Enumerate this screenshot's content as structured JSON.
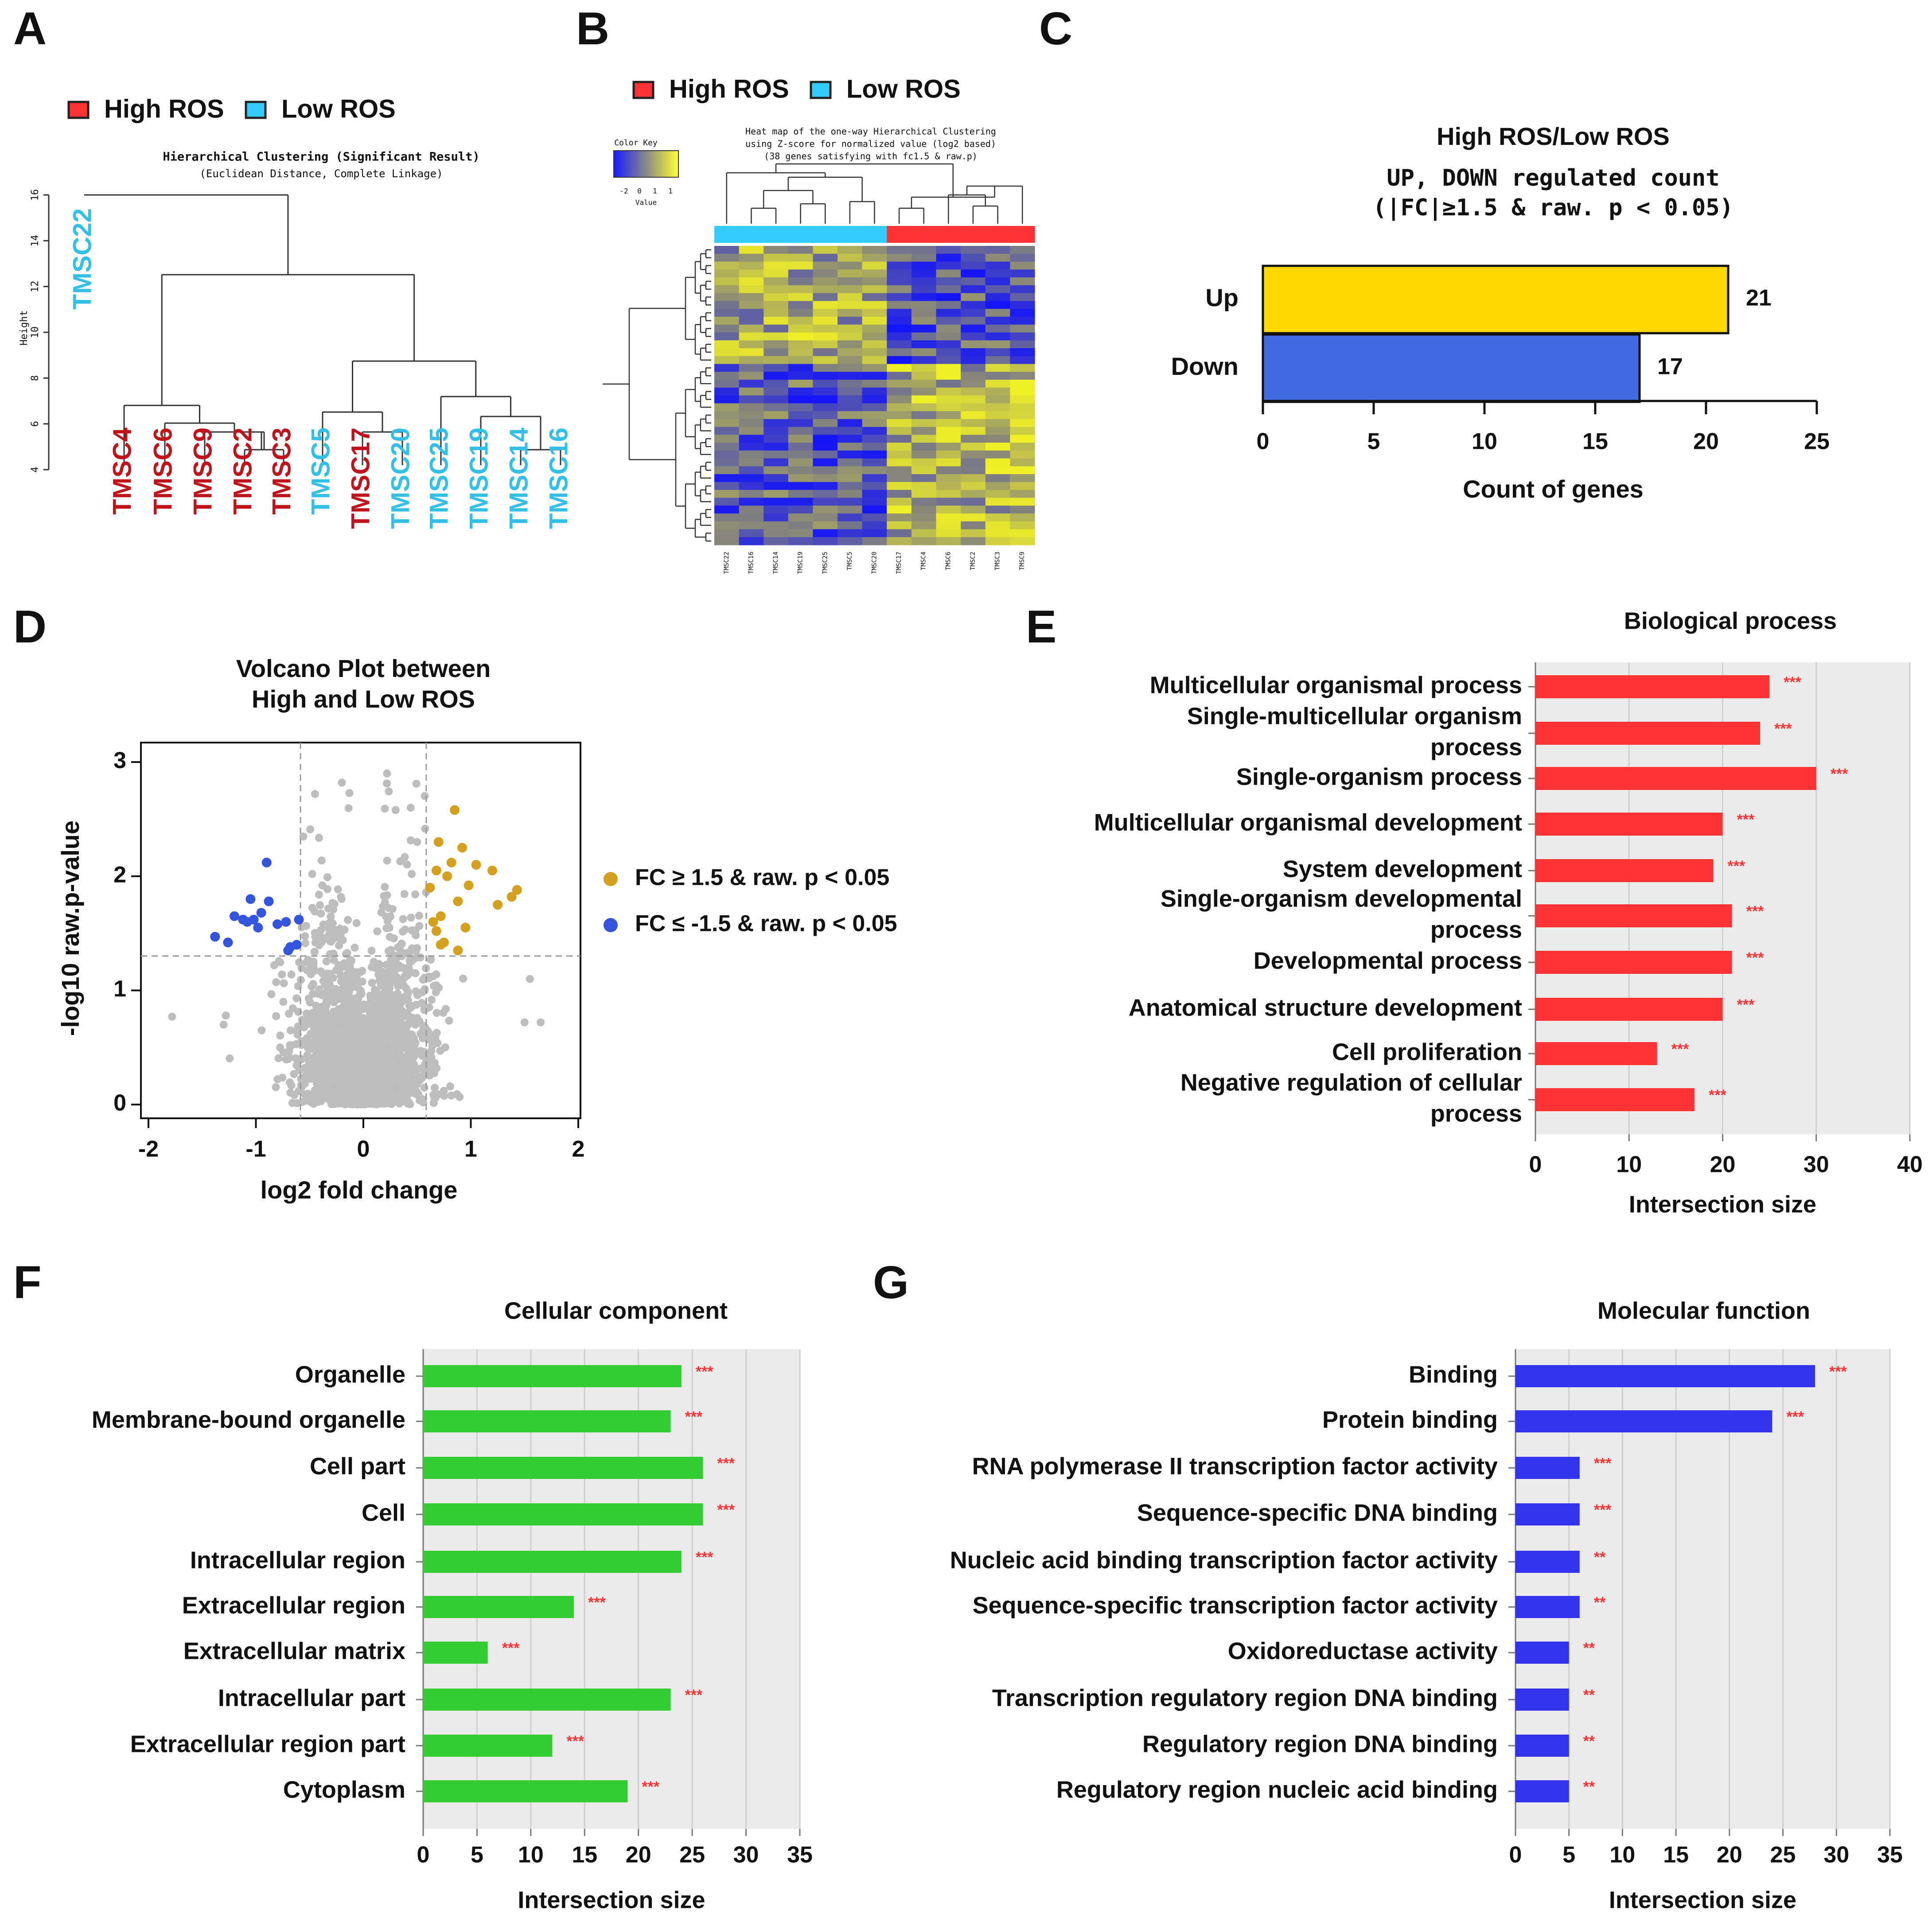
{
  "panel_letters": [
    "A",
    "B",
    "C",
    "D",
    "E",
    "F",
    "G"
  ],
  "legend": {
    "high": "High ROS",
    "low": "Low ROS",
    "high_color": "#ff3333",
    "low_color": "#33ccff"
  },
  "colors": {
    "high_label": "#c0141c",
    "low_label": "#33bfe6",
    "up": "#ffd700",
    "down": "#4169e1",
    "bp": "#ff3333",
    "cc": "#33cc33",
    "mf": "#3333ee",
    "sig": "#ff3333",
    "volcano_up": "#d4a020",
    "volcano_down": "#3355dd",
    "volcano_ns": "#bdbdbd"
  },
  "chart_data": [
    {
      "id": "A",
      "type": "dendrogram",
      "title": "Hierarchical Clustering (Significant Result)",
      "subtitle": "(Euclidean Distance, Complete Linkage)",
      "ylabel": "Height",
      "yticks": [
        4,
        6,
        8,
        10,
        12,
        14,
        16
      ],
      "ylim": [
        4,
        16
      ],
      "leaves": [
        {
          "name": "TMSC22",
          "group": "low"
        },
        {
          "name": "TMSC4",
          "group": "high"
        },
        {
          "name": "TMSC6",
          "group": "high"
        },
        {
          "name": "TMSC9",
          "group": "high"
        },
        {
          "name": "TMSC2",
          "group": "high"
        },
        {
          "name": "TMSC3",
          "group": "high"
        },
        {
          "name": "TMSC5",
          "group": "low"
        },
        {
          "name": "TMSC17",
          "group": "high"
        },
        {
          "name": "TMSC20",
          "group": "low"
        },
        {
          "name": "TMSC25",
          "group": "low"
        },
        {
          "name": "TMSC19",
          "group": "low"
        },
        {
          "name": "TMSC14",
          "group": "low"
        },
        {
          "name": "TMSC16",
          "group": "low"
        }
      ]
    },
    {
      "id": "B",
      "type": "heatmap",
      "title_lines": [
        "Heat map of the one-way Hierarchical Clustering",
        "using Z-score for normalized value (log2 based)",
        "(38 genes satisfying with fc1.5 & raw.p)"
      ],
      "color_key": {
        "title": "Color Key",
        "ticks": [
          "-2",
          "0",
          "1",
          "1"
        ],
        "label": "Value"
      },
      "columns": [
        "TMSC22",
        "TMSC16",
        "TMSC14",
        "TMSC19",
        "TMSC25",
        "TMSC5",
        "TMSC20",
        "TMSC17",
        "TMSC4",
        "TMSC6",
        "TMSC2",
        "TMSC3",
        "TMSC9"
      ],
      "column_groups": [
        "low",
        "low",
        "low",
        "low",
        "low",
        "low",
        "low",
        "high",
        "high",
        "high",
        "high",
        "high",
        "high"
      ],
      "n_genes": 38
    },
    {
      "id": "C",
      "type": "bar",
      "orientation": "horizontal",
      "title": "High ROS/Low ROS",
      "subtitle_line1": "UP, DOWN regulated count",
      "subtitle_line2": "(|FC|≥1.5 & raw. p < 0.05)",
      "categories": [
        "Up",
        "Down"
      ],
      "values": [
        21,
        17
      ],
      "xlabel": "Count of genes",
      "xlim": [
        0,
        25
      ],
      "xticks": [
        0,
        5,
        10,
        15,
        20,
        25
      ]
    },
    {
      "id": "D",
      "type": "scatter",
      "title_line1": "Volcano Plot between",
      "title_line2": "High and Low ROS",
      "xlabel": "log2 fold change",
      "ylabel": "-log10 raw.p-value",
      "xlim": [
        -2,
        2
      ],
      "ylim": [
        0,
        3
      ],
      "xticks": [
        -2,
        -1,
        0,
        1,
        2
      ],
      "yticks": [
        0,
        1,
        2,
        3
      ],
      "fc_threshold": 0.585,
      "p_threshold": 1.301,
      "legend_up": "FC ≥ 1.5 & raw. p < 0.05",
      "legend_down": "FC ≤ -1.5 & raw. p < 0.05",
      "up_points": [
        [
          0.62,
          1.9
        ],
        [
          0.7,
          2.3
        ],
        [
          0.72,
          1.65
        ],
        [
          0.78,
          2.0
        ],
        [
          0.82,
          2.12
        ],
        [
          0.85,
          2.58
        ],
        [
          0.88,
          1.78
        ],
        [
          0.92,
          2.25
        ],
        [
          0.95,
          1.55
        ],
        [
          0.98,
          1.92
        ],
        [
          1.05,
          2.1
        ],
        [
          1.2,
          2.05
        ],
        [
          1.25,
          1.75
        ],
        [
          1.38,
          1.82
        ],
        [
          1.43,
          1.88
        ],
        [
          0.65,
          1.6
        ],
        [
          0.68,
          1.52
        ],
        [
          0.72,
          1.4
        ],
        [
          0.75,
          1.42
        ],
        [
          0.88,
          1.35
        ],
        [
          0.68,
          2.05
        ]
      ],
      "down_points": [
        [
          -1.38,
          1.47
        ],
        [
          -1.26,
          1.42
        ],
        [
          -1.2,
          1.65
        ],
        [
          -1.12,
          1.62
        ],
        [
          -1.05,
          1.8
        ],
        [
          -1.02,
          1.62
        ],
        [
          -0.98,
          1.55
        ],
        [
          -0.9,
          2.12
        ],
        [
          -0.88,
          1.78
        ],
        [
          -0.8,
          1.58
        ],
        [
          -0.72,
          1.6
        ],
        [
          -0.68,
          1.38
        ],
        [
          -0.62,
          1.4
        ],
        [
          -0.6,
          1.62
        ],
        [
          -0.95,
          1.68
        ],
        [
          -1.08,
          1.6
        ],
        [
          -0.7,
          1.35
        ]
      ]
    },
    {
      "id": "E",
      "type": "bar",
      "orientation": "horizontal",
      "title": "Biological process",
      "xlabel": "Intersection size",
      "xlim": [
        0,
        40
      ],
      "xticks": [
        0,
        10,
        20,
        30,
        40
      ],
      "categories": [
        "Multicellular organismal process",
        "Single-multicellular organism process",
        "Single-organism process",
        "Multicellular organismal development",
        "System development",
        "Single-organism developmental process",
        "Developmental process",
        "Anatomical structure development",
        "Cell proliferation",
        "Negative regulation of cellular process"
      ],
      "label_lines": [
        [
          "Multicellular organismal process"
        ],
        [
          "Single-multicellular organism",
          "process"
        ],
        [
          "Single-organism process"
        ],
        [
          "Multicellular organismal development"
        ],
        [
          "System development"
        ],
        [
          "Single-organism developmental",
          "process"
        ],
        [
          "Developmental process"
        ],
        [
          "Anatomical structure development"
        ],
        [
          "Cell proliferation"
        ],
        [
          "Negative regulation of cellular",
          "process"
        ]
      ],
      "values": [
        25,
        24,
        30,
        20,
        19,
        21,
        21,
        20,
        13,
        17
      ],
      "significance": [
        "***",
        "***",
        "***",
        "***",
        "***",
        "***",
        "***",
        "***",
        "***",
        "***"
      ]
    },
    {
      "id": "F",
      "type": "bar",
      "orientation": "horizontal",
      "title": "Cellular component",
      "xlabel": "Intersection size",
      "xlim": [
        0,
        35
      ],
      "xticks": [
        0,
        5,
        10,
        15,
        20,
        25,
        30,
        35
      ],
      "categories": [
        "Organelle",
        "Membrane-bound organelle",
        "Cell part",
        "Cell",
        "Intracellular region",
        "Extracellular region",
        "Extracellular matrix",
        "Intracellular part",
        "Extracellular region part",
        "Cytoplasm"
      ],
      "values": [
        24,
        23,
        26,
        26,
        24,
        14,
        6,
        23,
        12,
        19
      ],
      "significance": [
        "***",
        "***",
        "***",
        "***",
        "***",
        "***",
        "***",
        "***",
        "***",
        "***"
      ]
    },
    {
      "id": "G",
      "type": "bar",
      "orientation": "horizontal",
      "title": "Molecular function",
      "xlabel": "Intersection size",
      "xlim": [
        0,
        35
      ],
      "xticks": [
        0,
        5,
        10,
        15,
        20,
        25,
        30,
        35
      ],
      "categories": [
        "Binding",
        "Protein binding",
        "RNA polymerase II transcription factor activity",
        "Sequence-specific DNA binding",
        "Nucleic acid binding transcription factor activity",
        "Sequence-specific transcription factor activity",
        "Oxidoreductase activity",
        "Transcription regulatory region DNA binding",
        "Regulatory region DNA binding",
        "Regulatory region nucleic acid binding"
      ],
      "values": [
        28,
        24,
        6,
        6,
        6,
        6,
        5,
        5,
        5,
        5
      ],
      "significance": [
        "***",
        "***",
        "***",
        "***",
        "**",
        "**",
        "**",
        "**",
        "**",
        "**"
      ]
    }
  ]
}
